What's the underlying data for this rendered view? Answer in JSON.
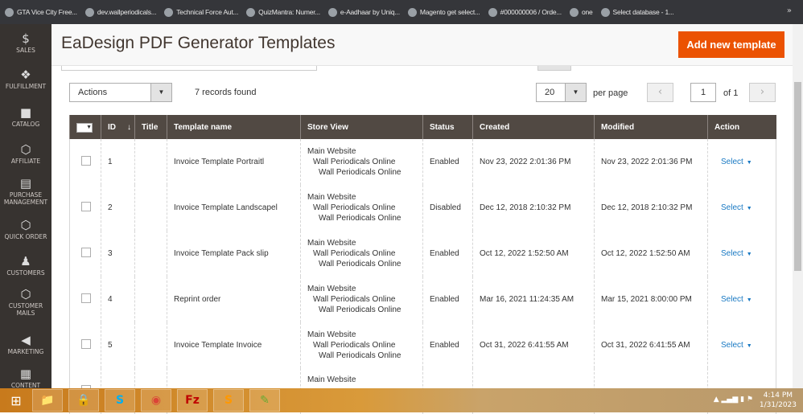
{
  "bookmarks": [
    "GTA Vice City Free...",
    "dev.wallperiodicals...",
    "Technical Force Aut...",
    "QuizMantra: Numer...",
    "e-Aadhaar by Uniq...",
    "Magento get select...",
    "#000000006 / Orde...",
    "one",
    "Select database - 1..."
  ],
  "bookmarks_more": "»",
  "sidebar": [
    {
      "icon": "dollar-icon",
      "glyph": "$",
      "label": "SALES"
    },
    {
      "icon": "fulfillment-icon",
      "glyph": "❖",
      "label": "FULFILLMENT"
    },
    {
      "icon": "catalog-box-icon",
      "glyph": "■",
      "label": "CATALOG"
    },
    {
      "icon": "hexagon-icon",
      "glyph": "⬡",
      "label": "AFFILIATE"
    },
    {
      "icon": "document-icon",
      "glyph": "▤",
      "label": "PURCHASE MANAGEMENT"
    },
    {
      "icon": "hexagon-icon",
      "glyph": "⬡",
      "label": "QUICK ORDER"
    },
    {
      "icon": "person-icon",
      "glyph": "♟",
      "label": "CUSTOMERS"
    },
    {
      "icon": "hexagon-icon",
      "glyph": "⬡",
      "label": "CUSTOMER MAILS"
    },
    {
      "icon": "megaphone-icon",
      "glyph": "◀",
      "label": "MARKETING"
    },
    {
      "icon": "layout-icon",
      "glyph": "▦",
      "label": "CONTENT"
    }
  ],
  "header": {
    "title": "EaDesign PDF Generator Templates",
    "add_button": "Add new template"
  },
  "toolbar": {
    "actions": "Actions",
    "records": "7 records found",
    "per_page_value": "20",
    "per_page_label": "per page",
    "page": "1",
    "of": "of 1"
  },
  "table": {
    "columns": [
      "ID",
      "Title",
      "Template name",
      "Store View",
      "Status",
      "Created",
      "Modified",
      "Action"
    ],
    "rows": [
      {
        "id": "1",
        "title": "",
        "name": "Invoice Template Portraitl",
        "store": [
          "Main Website",
          "Wall Periodicals Online",
          "Wall Periodicals Online"
        ],
        "status": "Enabled",
        "created": "Nov 23, 2022 2:01:36 PM",
        "modified": "Nov 23, 2022 2:01:36 PM",
        "action": "Select"
      },
      {
        "id": "2",
        "title": "",
        "name": "Invoice Template Landscapel",
        "store": [
          "Main Website",
          "Wall Periodicals Online",
          "Wall Periodicals Online"
        ],
        "status": "Disabled",
        "created": "Dec 12, 2018 2:10:32 PM",
        "modified": "Dec 12, 2018 2:10:32 PM",
        "action": "Select"
      },
      {
        "id": "3",
        "title": "",
        "name": "Invoice Template Pack slip",
        "store": [
          "Main Website",
          "Wall Periodicals Online",
          "Wall Periodicals Online"
        ],
        "status": "Enabled",
        "created": "Oct 12, 2022 1:52:50 AM",
        "modified": "Oct 12, 2022 1:52:50 AM",
        "action": "Select"
      },
      {
        "id": "4",
        "title": "",
        "name": "Reprint order",
        "store": [
          "Main Website",
          "Wall Periodicals Online",
          "Wall Periodicals Online"
        ],
        "status": "Enabled",
        "created": "Mar 16, 2021 11:24:35 AM",
        "modified": "Mar 15, 2021 8:00:00 PM",
        "action": "Select"
      },
      {
        "id": "5",
        "title": "",
        "name": "Invoice Template Invoice",
        "store": [
          "Main Website",
          "Wall Periodicals Online",
          "Wall Periodicals Online"
        ],
        "status": "Enabled",
        "created": "Oct 31, 2022 6:41:55 AM",
        "modified": "Oct 31, 2022 6:41:55 AM",
        "action": "Select"
      },
      {
        "id": "",
        "title": "",
        "name": "",
        "store": [
          "Main Website",
          "",
          ""
        ],
        "status": "",
        "created": "",
        "modified": "",
        "action": ""
      }
    ]
  },
  "taskbar": {
    "time": "4:14 PM",
    "date": "1/31/2023",
    "apps": [
      "file-explorer-icon",
      "lock-icon",
      "skype-icon",
      "chrome-icon",
      "filezilla-icon",
      "sublime-icon",
      "notepad-icon"
    ]
  }
}
